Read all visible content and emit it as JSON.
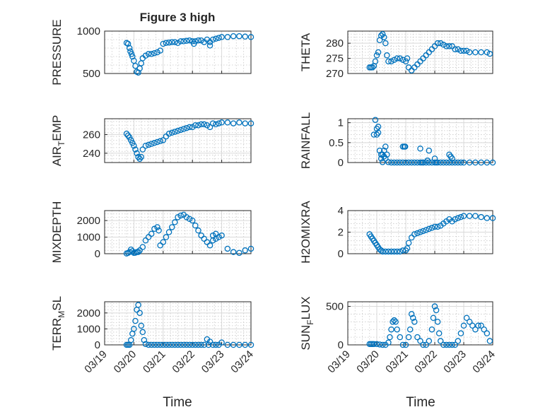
{
  "figure": {
    "title": "Figure 3 high",
    "marker_color": "#0072BD",
    "x_tick_labels": [
      "03/19",
      "03/20",
      "03/21",
      "03/22",
      "03/23",
      "03/24"
    ],
    "x_label": "Time"
  },
  "chart_data": [
    {
      "type": "scatter",
      "id": "pressure",
      "ylabel": "PRESSURE",
      "xlim": [
        0,
        5
      ],
      "ylim": [
        500,
        1000
      ],
      "yticks": [
        500,
        1000
      ],
      "x": [
        0.75,
        0.8,
        0.85,
        0.88,
        0.92,
        0.95,
        1.0,
        1.05,
        1.1,
        1.15,
        1.2,
        1.25,
        1.3,
        1.4,
        1.5,
        1.6,
        1.7,
        1.8,
        1.9,
        2.0,
        2.1,
        2.2,
        2.3,
        2.4,
        2.5,
        2.6,
        2.7,
        2.8,
        2.9,
        3.0,
        3.1,
        3.2,
        3.3,
        3.4,
        3.5,
        3.6,
        3.7,
        3.8,
        3.9,
        4.0,
        4.2,
        4.4,
        4.6,
        4.8,
        5.0,
        3.05,
        3.6
      ],
      "y": [
        860,
        850,
        800,
        760,
        730,
        700,
        650,
        590,
        520,
        510,
        560,
        620,
        680,
        710,
        730,
        730,
        740,
        750,
        770,
        850,
        860,
        865,
        870,
        870,
        860,
        880,
        880,
        885,
        890,
        880,
        880,
        890,
        890,
        870,
        900,
        870,
        900,
        910,
        920,
        930,
        930,
        940,
        940,
        935,
        930,
        850,
        830
      ]
    },
    {
      "type": "scatter",
      "id": "theta",
      "ylabel": "THETA",
      "xlim": [
        0,
        5
      ],
      "ylim": [
        270,
        284
      ],
      "yticks": [
        270,
        275,
        280
      ],
      "x": [
        0.75,
        0.8,
        0.85,
        0.9,
        0.95,
        1.0,
        1.05,
        1.1,
        1.15,
        1.2,
        1.25,
        1.3,
        1.35,
        1.4,
        1.5,
        1.6,
        1.7,
        1.8,
        1.9,
        2.0,
        2.05,
        2.1,
        2.2,
        2.3,
        2.4,
        2.5,
        2.6,
        2.7,
        2.8,
        2.9,
        3.0,
        3.1,
        3.2,
        3.3,
        3.4,
        3.5,
        3.6,
        3.7,
        3.8,
        3.9,
        4.0,
        4.1,
        4.2,
        4.4,
        4.6,
        4.8,
        4.9
      ],
      "y": [
        272,
        272,
        272,
        272.5,
        274,
        276,
        277,
        281,
        282.5,
        283,
        282,
        280,
        276,
        274,
        274,
        274.5,
        275,
        275,
        274.5,
        274,
        275,
        272,
        271,
        272,
        273,
        274,
        275,
        276,
        277,
        278,
        279,
        280,
        280,
        279.5,
        279,
        279,
        279,
        278,
        278,
        277.5,
        277.5,
        277.5,
        277,
        277,
        277,
        277,
        276.5
      ]
    },
    {
      "type": "scatter",
      "id": "air_temp",
      "ylabel": "AIR",
      "ylabel_sub": "T",
      "ylabel_rest": "EMP",
      "xlim": [
        0,
        5
      ],
      "ylim": [
        230,
        277
      ],
      "yticks": [
        240,
        260
      ],
      "x": [
        0.75,
        0.8,
        0.85,
        0.9,
        0.95,
        1.0,
        1.05,
        1.1,
        1.15,
        1.2,
        1.25,
        1.3,
        1.4,
        1.5,
        1.6,
        1.7,
        1.8,
        1.9,
        2.0,
        2.1,
        2.2,
        2.3,
        2.4,
        2.5,
        2.6,
        2.7,
        2.8,
        2.9,
        3.0,
        3.1,
        3.2,
        3.3,
        3.4,
        3.5,
        3.6,
        3.7,
        3.8,
        3.9,
        4.0,
        4.2,
        4.4,
        4.6,
        4.8,
        5.0
      ],
      "y": [
        261,
        259,
        257,
        254,
        251,
        248,
        244,
        240,
        236,
        234,
        236,
        244,
        248,
        249,
        250,
        251,
        252,
        253,
        254,
        258,
        261,
        262,
        263,
        264,
        265,
        266,
        267,
        268,
        268,
        270,
        270,
        271,
        271,
        270,
        268,
        272,
        271,
        272,
        273,
        273,
        272,
        273,
        272,
        272
      ]
    },
    {
      "type": "scatter",
      "id": "rainfall",
      "ylabel": "RAINFALL",
      "xlim": [
        0,
        5
      ],
      "ylim": [
        0,
        1.1
      ],
      "yticks": [
        0,
        0.5,
        1
      ],
      "x": [
        0.9,
        1.0,
        1.05,
        1.1,
        1.15,
        1.2,
        1.25,
        1.3,
        1.35,
        1.4,
        1.5,
        1.6,
        1.7,
        1.8,
        1.9,
        2.0,
        2.1,
        2.2,
        2.3,
        2.4,
        2.5,
        2.6,
        2.7,
        2.8,
        2.9,
        3.0,
        3.1,
        3.2,
        3.3,
        3.4,
        3.5,
        3.6,
        3.7,
        3.8,
        3.9,
        4.0,
        4.2,
        4.4,
        4.6,
        4.8,
        5.0,
        0.95,
        1.0,
        1.05,
        1.15,
        1.2,
        1.25,
        1.3,
        1.9,
        1.95,
        1.98,
        2.5,
        2.55,
        2.6,
        2.75,
        2.8,
        3.0,
        3.05,
        3.5,
        3.55,
        3.6
      ],
      "y": [
        0.7,
        0.7,
        0.9,
        0.3,
        0.2,
        0.01,
        0.3,
        0.4,
        0.2,
        0.01,
        0,
        0,
        0,
        0,
        0,
        0,
        0,
        0,
        0,
        0,
        0,
        0,
        0,
        0,
        0,
        0,
        0,
        0,
        0,
        0,
        0,
        0,
        0,
        0,
        0,
        0,
        0,
        0,
        0,
        0,
        0,
        1.07,
        0.85,
        0.75,
        0.1,
        0.2,
        0.15,
        0.1,
        0.4,
        0.4,
        0.4,
        0.35,
        0,
        0,
        0.05,
        0.3,
        0.1,
        0,
        0.2,
        0.15,
        0.1
      ]
    },
    {
      "type": "scatter",
      "id": "mixdepth",
      "ylabel": "MIXDEPTH",
      "xlim": [
        0,
        5
      ],
      "ylim": [
        0,
        2600
      ],
      "yticks": [
        0,
        1000,
        2000
      ],
      "x": [
        0.75,
        0.8,
        0.85,
        0.9,
        0.95,
        1.0,
        1.05,
        1.1,
        1.15,
        1.2,
        1.3,
        1.4,
        1.5,
        1.6,
        1.7,
        1.8,
        1.85,
        1.9,
        2.0,
        2.1,
        2.2,
        2.3,
        2.4,
        2.5,
        2.6,
        2.7,
        2.8,
        2.9,
        3.0,
        3.1,
        3.2,
        3.3,
        3.4,
        3.5,
        3.6,
        3.7,
        3.8,
        3.9,
        4.0,
        4.2,
        4.4,
        4.6,
        4.8,
        5.0,
        3.8,
        3.7
      ],
      "y": [
        10,
        50,
        100,
        250,
        150,
        50,
        60,
        100,
        100,
        200,
        400,
        800,
        1000,
        1200,
        1500,
        1600,
        1400,
        500,
        700,
        1000,
        1300,
        1600,
        1900,
        2200,
        2300,
        2350,
        2200,
        2100,
        2000,
        1700,
        1400,
        1100,
        900,
        700,
        500,
        800,
        900,
        1000,
        1100,
        300,
        100,
        50,
        200,
        300,
        1200,
        1100
      ]
    },
    {
      "type": "scatter",
      "id": "h2omixra",
      "ylabel": "H2OMIXRA",
      "xlim": [
        0,
        5
      ],
      "ylim": [
        0,
        4
      ],
      "yticks": [
        0,
        2,
        4
      ],
      "x": [
        0.75,
        0.8,
        0.85,
        0.9,
        0.95,
        1.0,
        1.05,
        1.1,
        1.15,
        1.2,
        1.3,
        1.4,
        1.5,
        1.6,
        1.7,
        1.8,
        1.9,
        2.0,
        2.05,
        2.1,
        2.2,
        2.3,
        2.4,
        2.5,
        2.6,
        2.7,
        2.8,
        2.9,
        3.0,
        3.1,
        3.2,
        3.3,
        3.4,
        3.5,
        3.6,
        3.7,
        3.8,
        3.9,
        4.0,
        4.2,
        4.4,
        4.6,
        4.8,
        5.0
      ],
      "y": [
        1.8,
        1.6,
        1.4,
        1.2,
        1.0,
        0.8,
        0.6,
        0.4,
        0.3,
        0.2,
        0.2,
        0.2,
        0.2,
        0.2,
        0.2,
        0.2,
        0.3,
        0.3,
        0.5,
        1.0,
        1.5,
        1.8,
        1.9,
        2.0,
        2.1,
        2.2,
        2.3,
        2.4,
        2.5,
        2.5,
        2.6,
        2.8,
        3.0,
        3.2,
        3.0,
        3.2,
        3.3,
        3.4,
        3.5,
        3.5,
        3.5,
        3.4,
        3.3,
        3.3
      ]
    },
    {
      "type": "scatter",
      "id": "terr_msl",
      "ylabel": "TERR",
      "ylabel_sub": "M",
      "ylabel_rest": "SL",
      "xlim": [
        0,
        5
      ],
      "ylim": [
        0,
        2700
      ],
      "yticks": [
        0,
        1000,
        2000
      ],
      "x": [
        0.75,
        0.8,
        0.85,
        0.9,
        0.95,
        1.0,
        1.05,
        1.1,
        1.15,
        1.2,
        1.25,
        1.3,
        1.35,
        1.4,
        1.5,
        1.6,
        1.7,
        1.8,
        1.9,
        2.0,
        2.1,
        2.2,
        2.3,
        2.4,
        2.5,
        2.6,
        2.7,
        2.8,
        2.9,
        3.0,
        3.1,
        3.2,
        3.3,
        3.4,
        3.5,
        3.6,
        3.7,
        3.8,
        3.9,
        4.0,
        4.2,
        4.4,
        4.6,
        4.8,
        5.0,
        3.55
      ],
      "y": [
        0,
        0,
        0,
        300,
        700,
        1000,
        1500,
        2200,
        2500,
        2000,
        1200,
        800,
        300,
        50,
        0,
        0,
        0,
        0,
        0,
        0,
        0,
        0,
        0,
        0,
        0,
        0,
        0,
        0,
        0,
        0,
        0,
        0,
        0,
        0,
        350,
        200,
        0,
        0,
        0,
        150,
        0,
        0,
        0,
        0,
        0,
        0
      ]
    },
    {
      "type": "scatter",
      "id": "sun_flux",
      "ylabel": "SUN",
      "ylabel_sub": "F",
      "ylabel_rest": "LUX",
      "xlim": [
        0,
        5
      ],
      "ylim": [
        0,
        560
      ],
      "yticks": [
        0,
        500
      ],
      "x": [
        0.75,
        0.8,
        0.85,
        0.9,
        1.0,
        1.1,
        1.2,
        1.3,
        1.4,
        1.45,
        1.5,
        1.55,
        1.6,
        1.65,
        1.7,
        1.8,
        1.9,
        2.0,
        2.1,
        2.15,
        2.2,
        2.25,
        2.3,
        2.4,
        2.5,
        2.6,
        2.7,
        2.8,
        2.9,
        2.95,
        3.0,
        3.05,
        3.1,
        3.15,
        3.2,
        3.3,
        3.4,
        3.5,
        3.6,
        3.7,
        3.8,
        3.9,
        4.0,
        4.1,
        4.2,
        4.3,
        4.4,
        4.5,
        4.6,
        4.7,
        4.8,
        4.9
      ],
      "y": [
        10,
        10,
        10,
        10,
        10,
        5,
        0,
        0,
        30,
        100,
        200,
        300,
        320,
        300,
        200,
        100,
        0,
        0,
        100,
        200,
        400,
        350,
        300,
        100,
        50,
        0,
        0,
        50,
        200,
        350,
        500,
        450,
        300,
        150,
        50,
        0,
        0,
        0,
        0,
        0,
        50,
        150,
        250,
        350,
        300,
        250,
        200,
        250,
        250,
        200,
        150,
        50
      ]
    }
  ]
}
